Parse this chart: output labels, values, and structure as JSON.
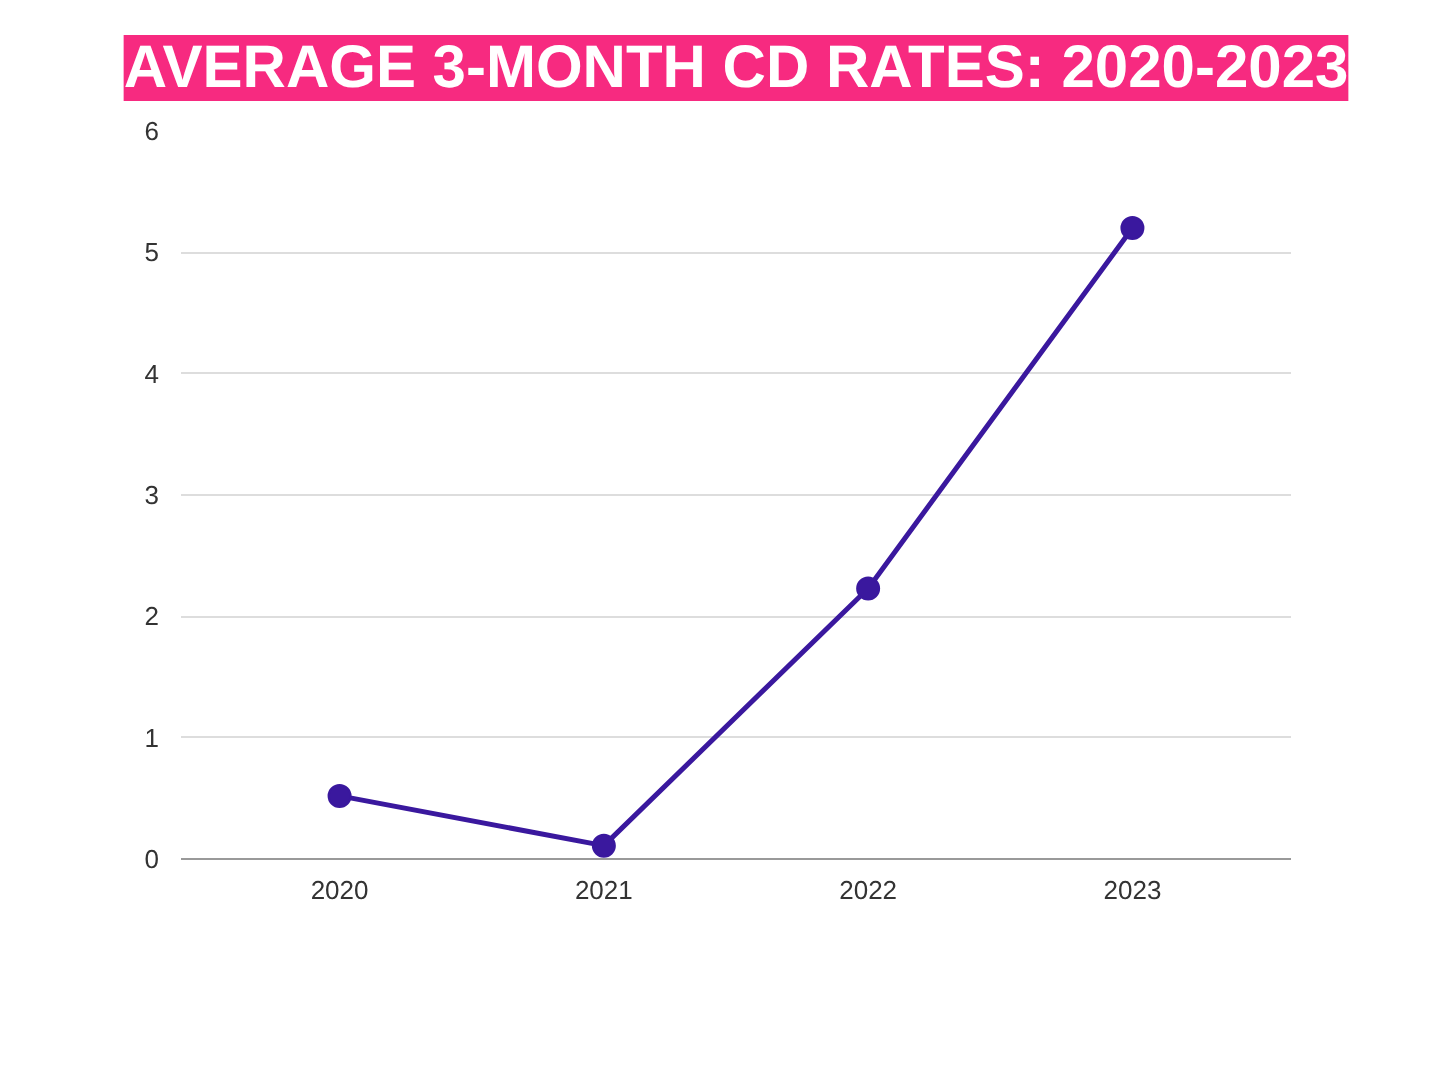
{
  "chart_data": {
    "type": "line",
    "title": "AVERAGE 3-MONTH CD RATES: 2020-2023",
    "categories": [
      "2020",
      "2021",
      "2022",
      "2023"
    ],
    "series": [
      {
        "color": "#3a189e",
        "values": [
          0.52,
          0.11,
          2.23,
          5.2
        ]
      }
    ],
    "ylim": [
      0,
      6
    ],
    "yticks": [
      0,
      1,
      2,
      3,
      4,
      5,
      6
    ],
    "grid": "y",
    "marker": "circle",
    "line_style": "solid"
  }
}
